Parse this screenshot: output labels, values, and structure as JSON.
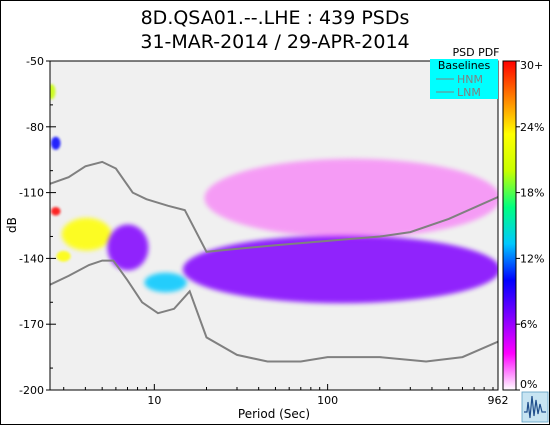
{
  "titles": {
    "line1": "8D.QSA01.--.LHE : 439 PSDs",
    "line2": "31-MAR-2014 / 29-APR-2014"
  },
  "legend": {
    "heading": "Baselines",
    "items": [
      {
        "label": "HNM",
        "color": "#808080"
      },
      {
        "label": "LNM",
        "color": "#808080"
      }
    ],
    "background": "#00ffff",
    "placement": "top-right"
  },
  "colorbar": {
    "title": "PSD PDF",
    "ticks": [
      "30+",
      "24%",
      "18%",
      "12%",
      "6%",
      "0%"
    ],
    "stops": [
      "#ffffff",
      "#ff00ff",
      "#8000ff",
      "#0000ff",
      "#00c8ff",
      "#00ff80",
      "#c8ff00",
      "#ffff00",
      "#ff8000",
      "#ff0000"
    ]
  },
  "chart_data": {
    "type": "heatmap",
    "title": "8D.QSA01.--.LHE : 439 PSDs",
    "subtitle": "31-MAR-2014 / 29-APR-2014",
    "xlabel": "Period (Sec)",
    "ylabel": "dB",
    "x_scale": "log",
    "xlim": [
      2.5,
      962
    ],
    "ylim": [
      -200,
      -50
    ],
    "x_ticks": [
      {
        "value": 10,
        "label": "10"
      },
      {
        "value": 100,
        "label": "100"
      },
      {
        "value": 962,
        "label": "962"
      }
    ],
    "y_ticks": [
      {
        "value": -50,
        "label": "-50"
      },
      {
        "value": -80,
        "label": "-80"
      },
      {
        "value": -110,
        "label": "-110"
      },
      {
        "value": -140,
        "label": "-140"
      },
      {
        "value": -170,
        "label": "-170"
      },
      {
        "value": -200,
        "label": "-200"
      }
    ],
    "background": "#f0f0f0",
    "nlnm": [
      [
        2.5,
        -152
      ],
      [
        3.2,
        -148
      ],
      [
        4.2,
        -143
      ],
      [
        5,
        -141
      ],
      [
        5.8,
        -141
      ],
      [
        7,
        -150
      ],
      [
        8.5,
        -160
      ],
      [
        10.5,
        -165
      ],
      [
        13,
        -163
      ],
      [
        16,
        -155
      ],
      [
        20,
        -176
      ],
      [
        30,
        -184
      ],
      [
        45,
        -187
      ],
      [
        70,
        -187
      ],
      [
        100,
        -185
      ],
      [
        200,
        -185
      ],
      [
        370,
        -187
      ],
      [
        600,
        -185
      ],
      [
        962,
        -178
      ]
    ],
    "nhnm": [
      [
        2.5,
        -106
      ],
      [
        3.2,
        -103
      ],
      [
        4,
        -98
      ],
      [
        5,
        -96
      ],
      [
        6,
        -99
      ],
      [
        7.5,
        -110
      ],
      [
        9,
        -113
      ],
      [
        12,
        -116
      ],
      [
        15,
        -118
      ],
      [
        20,
        -137
      ],
      [
        50,
        -134
      ],
      [
        100,
        -132
      ],
      [
        200,
        -130
      ],
      [
        300,
        -128
      ],
      [
        500,
        -122
      ],
      [
        962,
        -112
      ]
    ],
    "psd_density": [
      {
        "period_range": [
          2.5,
          2.6
        ],
        "db_range": [
          -67,
          -61
        ],
        "percent": 20
      },
      {
        "period_range": [
          2.6,
          2.8
        ],
        "db_range": [
          -90,
          -85
        ],
        "percent": 10
      },
      {
        "period_range": [
          2.6,
          2.8
        ],
        "db_range": [
          -120,
          -117
        ],
        "percent": 30
      },
      {
        "period_range": [
          2.8,
          3.2
        ],
        "db_range": [
          -141,
          -137
        ],
        "percent": 22
      },
      {
        "period_range": [
          3.0,
          5.5
        ],
        "db_range": [
          -136,
          -122
        ],
        "percent": 24
      },
      {
        "period_range": [
          5.5,
          9
        ],
        "db_range": [
          -145,
          -125
        ],
        "percent": 8
      },
      {
        "period_range": [
          9,
          15
        ],
        "db_range": [
          -155,
          -147
        ],
        "percent": 14
      },
      {
        "period_range": [
          15,
          962
        ],
        "db_range": [
          -160,
          -130
        ],
        "percent": 6
      },
      {
        "period_range": [
          20,
          962
        ],
        "db_range": [
          -130,
          -95
        ],
        "percent": 1
      }
    ]
  }
}
